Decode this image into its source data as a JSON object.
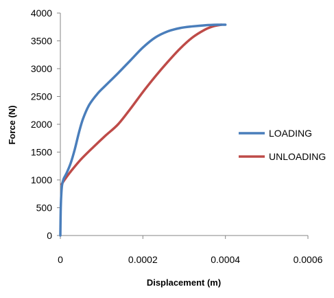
{
  "chart_data": {
    "type": "line",
    "title": "",
    "xlabel": "Displacement (m)",
    "ylabel": "Force (N)",
    "xlim": [
      0,
      0.0006
    ],
    "ylim": [
      0,
      4000
    ],
    "x_ticks": [
      "0",
      "0.0002",
      "0.0004",
      "0.0006"
    ],
    "y_ticks": [
      "0",
      "500",
      "1000",
      "1500",
      "2000",
      "2500",
      "3000",
      "3500",
      "4000"
    ],
    "grid": false,
    "legend_position": "right",
    "series": [
      {
        "name": "LOADING",
        "color": "#4a7ebb",
        "points": [
          [
            0.0,
            0
          ],
          [
            5e-07,
            300
          ],
          [
            1e-06,
            500
          ],
          [
            2e-06,
            700
          ],
          [
            4e-06,
            900
          ],
          [
            8e-06,
            1020
          ],
          [
            1.5e-05,
            1120
          ],
          [
            2.5e-05,
            1300
          ],
          [
            3.5e-05,
            1550
          ],
          [
            4.5e-05,
            1850
          ],
          [
            5.5e-05,
            2100
          ],
          [
            7e-05,
            2350
          ],
          [
            9e-05,
            2550
          ],
          [
            0.00011,
            2700
          ],
          [
            0.00014,
            2920
          ],
          [
            0.00017,
            3150
          ],
          [
            0.0002,
            3380
          ],
          [
            0.00023,
            3560
          ],
          [
            0.00026,
            3670
          ],
          [
            0.00029,
            3730
          ],
          [
            0.00032,
            3760
          ],
          [
            0.00035,
            3780
          ],
          [
            0.00038,
            3790
          ],
          [
            0.0004,
            3790
          ]
        ]
      },
      {
        "name": "UNLOADING",
        "color": "#be4b48",
        "points": [
          [
            0.00039,
            3790
          ],
          [
            0.00037,
            3760
          ],
          [
            0.00035,
            3700
          ],
          [
            0.00032,
            3560
          ],
          [
            0.00029,
            3360
          ],
          [
            0.00026,
            3120
          ],
          [
            0.00023,
            2860
          ],
          [
            0.0002,
            2580
          ],
          [
            0.00017,
            2280
          ],
          [
            0.00014,
            2000
          ],
          [
            0.00011,
            1800
          ],
          [
            8e-05,
            1590
          ],
          [
            5e-05,
            1370
          ],
          [
            2.5e-05,
            1150
          ],
          [
            1e-05,
            1000
          ],
          [
            3e-06,
            920
          ]
        ]
      }
    ]
  }
}
